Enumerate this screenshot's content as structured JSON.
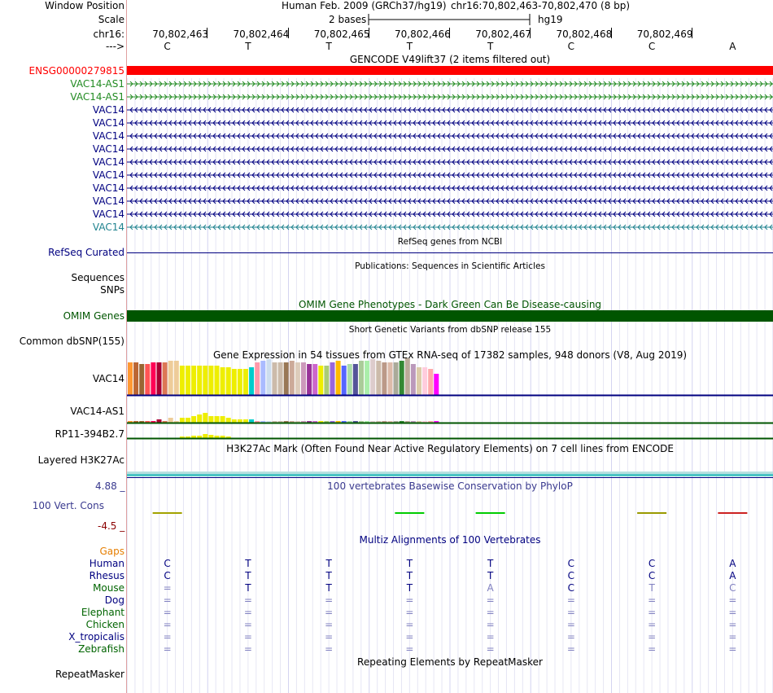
{
  "header": {
    "window_position_label": "Window Position",
    "assembly_text": "Human Feb. 2009 (GRCh37/hg19)",
    "position_text": "chr16:70,802,463-70,802,470 (8 bp)",
    "scale_label": "Scale",
    "scale_value": "2 bases",
    "scale_db": "hg19",
    "chrom_label": "chr16:",
    "strand_label": "--->",
    "base_positions": [
      "70,802,463",
      "70,802,464",
      "70,802,465",
      "70,802,466",
      "70,802,467",
      "70,802,468",
      "70,802,469"
    ],
    "bases": [
      "C",
      "T",
      "T",
      "T",
      "T",
      "C",
      "C",
      "A"
    ]
  },
  "gencode": {
    "title": "GENCODE V49lift37 (2 items filtered out)",
    "tracks": [
      {
        "label": "ENSG00000279815",
        "color": "#ff0000",
        "style": "bar"
      },
      {
        "label": "VAC14-AS1",
        "color": "#228b22",
        "style": "forward"
      },
      {
        "label": "VAC14-AS1",
        "color": "#228b22",
        "style": "forward"
      },
      {
        "label": "VAC14",
        "color": "#000080",
        "style": "reverse"
      },
      {
        "label": "VAC14",
        "color": "#000080",
        "style": "reverse"
      },
      {
        "label": "VAC14",
        "color": "#000080",
        "style": "reverse"
      },
      {
        "label": "VAC14",
        "color": "#000080",
        "style": "reverse"
      },
      {
        "label": "VAC14",
        "color": "#000080",
        "style": "reverse"
      },
      {
        "label": "VAC14",
        "color": "#000080",
        "style": "reverse"
      },
      {
        "label": "VAC14",
        "color": "#000080",
        "style": "reverse"
      },
      {
        "label": "VAC14",
        "color": "#000080",
        "style": "reverse"
      },
      {
        "label": "VAC14",
        "color": "#000080",
        "style": "reverse"
      },
      {
        "label": "VAC14",
        "color": "#20838f",
        "style": "reverse"
      }
    ]
  },
  "refseq": {
    "title": "RefSeq genes from NCBI",
    "label": "RefSeq Curated",
    "color": "#000080"
  },
  "publications": {
    "title": "Publications: Sequences in Scientific Articles",
    "label_sequences": "Sequences",
    "label_snps": "SNPs"
  },
  "omim": {
    "title": "OMIM Gene Phenotypes - Dark Green Can Be Disease-causing",
    "label": "OMIM Genes",
    "color": "#005500"
  },
  "dbsnp": {
    "title": "Short Genetic Variants from dbSNP release 155",
    "label": "Common dbSNP(155)"
  },
  "gtex": {
    "title": "Gene Expression in 54 tissues from GTEx RNA-seq of 17382 samples, 948 donors (V8, Aug 2019)",
    "tissue_colors": [
      "#ff9933",
      "#bb6633",
      "#996633",
      "#ff5555",
      "#ff0055",
      "#aa0033",
      "#dd7755",
      "#eecc99",
      "#eecc99",
      "#eeee00",
      "#eeee00",
      "#eeee00",
      "#eeee00",
      "#eeee00",
      "#eeee00",
      "#eeee00",
      "#eeee00",
      "#eeee00",
      "#eeee00",
      "#eeee00",
      "#eeee00",
      "#00cccc",
      "#ff99aa",
      "#aabbff",
      "#ccddee",
      "#ccbbaa",
      "#ccbbaa",
      "#997755",
      "#ccaa99",
      "#ddccbb",
      "#cc99bb",
      "#993399",
      "#cc66cc",
      "#eeee00",
      "#aacc77",
      "#9966dd",
      "#ffbb00",
      "#5566ff",
      "#aaddaa",
      "#555599",
      "#aacc99",
      "#aaeeaa",
      "#ddcccc",
      "#ccbbaa",
      "#bb9988",
      "#ddbbaa",
      "#aaaa99",
      "#338833",
      "#bbaa99",
      "#bb99bb",
      "#ddccaa",
      "#ffccdd",
      "#ffaaaa",
      "#ff00ff"
    ],
    "genes": [
      {
        "label": "VAC14",
        "axis_color": "#000080",
        "values": [
          40,
          40,
          38,
          38,
          40,
          40,
          40,
          42,
          42,
          36,
          36,
          36,
          36,
          36,
          36,
          36,
          34,
          34,
          32,
          32,
          32,
          34,
          40,
          42,
          44,
          40,
          40,
          40,
          42,
          40,
          40,
          38,
          38,
          36,
          36,
          40,
          42,
          36,
          38,
          38,
          42,
          42,
          44,
          42,
          40,
          40,
          40,
          42,
          46,
          38,
          34,
          34,
          32,
          26
        ]
      },
      {
        "label": "VAC14-AS1",
        "axis_color": "#005500",
        "values": [
          2,
          2,
          2,
          2,
          2,
          4,
          2,
          6,
          2,
          6,
          6,
          8,
          10,
          12,
          8,
          8,
          8,
          6,
          4,
          4,
          4,
          4,
          2,
          2,
          2,
          2,
          2,
          2,
          2,
          2,
          2,
          2,
          2,
          2,
          2,
          2,
          2,
          2,
          2,
          2,
          2,
          2,
          2,
          2,
          2,
          2,
          2,
          2,
          2,
          2,
          2,
          2,
          2,
          2
        ]
      },
      {
        "label": "RP11-394B2.7",
        "axis_color": "#005500",
        "values": [
          0,
          0,
          0,
          0,
          0,
          0,
          0,
          0,
          0,
          2,
          2,
          3,
          3,
          5,
          4,
          3,
          3,
          2,
          0,
          0,
          0,
          0,
          0,
          0,
          0,
          0,
          0,
          0,
          0,
          0,
          0,
          0,
          0,
          0,
          0,
          0,
          0,
          0,
          0,
          0,
          0,
          0,
          0,
          0,
          0,
          0,
          0,
          0,
          0,
          0,
          0,
          0,
          0,
          0
        ]
      }
    ]
  },
  "h3k27ac": {
    "title": "H3K27Ac Mark (Often Found Near Active Regulatory Elements) on 7 cell lines from ENCODE",
    "label": "Layered H3K27Ac"
  },
  "cons": {
    "title": "100 vertebrates Basewise Conservation by PhyloP",
    "label": "100 Vert. Cons",
    "max": "4.88",
    "min": "-4.5",
    "color": "#3a3a8f",
    "scores": [
      0.6,
      0.0,
      0.0,
      0.3,
      0.2,
      0.0,
      0.4,
      -0.3
    ]
  },
  "multiz": {
    "title": "Multiz Alignments of 100 Vertebrates",
    "gaps_label": "Gaps",
    "species": [
      {
        "label": "Human",
        "color": "#000080",
        "bases": [
          "C",
          "T",
          "T",
          "T",
          "T",
          "C",
          "C",
          "A"
        ]
      },
      {
        "label": "Rhesus",
        "color": "#000080",
        "bases": [
          "C",
          "T",
          "T",
          "T",
          "T",
          "C",
          "C",
          "A"
        ]
      },
      {
        "label": "Mouse",
        "color": "#006400",
        "bases": [
          "=",
          "T",
          "T",
          "T",
          "A",
          "C",
          "T",
          "C"
        ]
      },
      {
        "label": "Dog",
        "color": "#000080",
        "bases": [
          "=",
          "=",
          "=",
          "=",
          "=",
          "=",
          "=",
          "="
        ]
      },
      {
        "label": "Elephant",
        "color": "#006400",
        "bases": [
          "=",
          "=",
          "=",
          "=",
          "=",
          "=",
          "=",
          "="
        ]
      },
      {
        "label": "Chicken",
        "color": "#006400",
        "bases": [
          "=",
          "=",
          "=",
          "=",
          "=",
          "=",
          "=",
          "="
        ]
      },
      {
        "label": "X_tropicalis",
        "color": "#000080",
        "bases": [
          "=",
          "=",
          "=",
          "=",
          "=",
          "=",
          "=",
          "="
        ]
      },
      {
        "label": "Zebrafish",
        "color": "#006400",
        "bases": [
          "=",
          "=",
          "=",
          "=",
          "=",
          "=",
          "=",
          "="
        ]
      }
    ]
  },
  "repeatmasker": {
    "title": "Repeating Elements by RepeatMasker",
    "label": "RepeatMasker"
  }
}
